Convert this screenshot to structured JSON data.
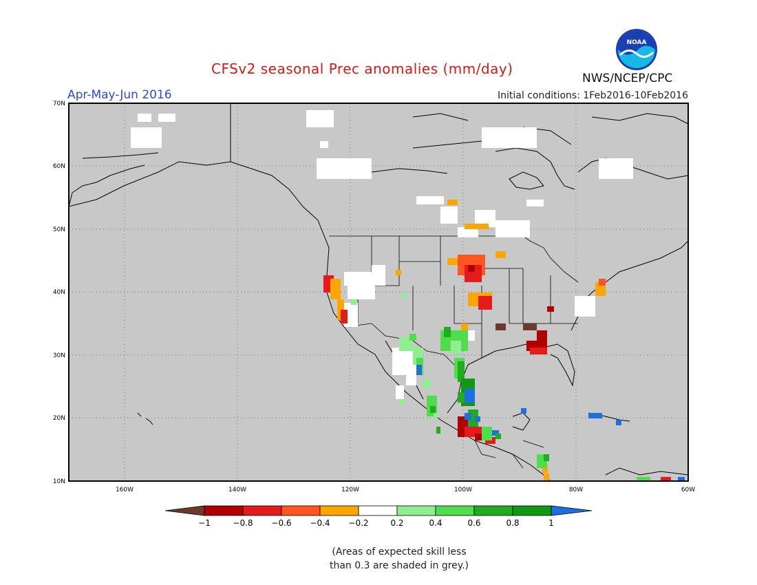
{
  "header": {
    "title": "CFSv2 seasonal Prec anomalies (mm/day)",
    "period": "Apr-May-Jun 2016",
    "initial_conditions": "Initial conditions: 1Feb2016-10Feb2016",
    "agency": "NWS/NCEP/CPC",
    "logo_text": "NOAA"
  },
  "map": {
    "lat_labels": [
      "70N",
      "60N",
      "50N",
      "40N",
      "30N",
      "20N",
      "10N"
    ],
    "lon_labels": [
      "160W",
      "140W",
      "120W",
      "100W",
      "80W",
      "60W"
    ],
    "background_color": "#c8c8c8",
    "graticule": "dotted"
  },
  "colorbar": {
    "tick_labels": [
      "-1",
      "-0.8",
      "-0.6",
      "-0.4",
      "-0.2",
      "0.2",
      "0.4",
      "0.6",
      "0.8",
      "1"
    ],
    "colors": [
      "#6b3a2a",
      "#b00000",
      "#e41a1c",
      "#ff5522",
      "#ffa500",
      "#ffffff",
      "#90ee90",
      "#4ddd4d",
      "#22aa22",
      "#119911",
      "#1e6fe0"
    ]
  },
  "footnote": {
    "line1": "(Areas of expected skill less",
    "line2": "than 0.3 are shaded in grey.)"
  }
}
